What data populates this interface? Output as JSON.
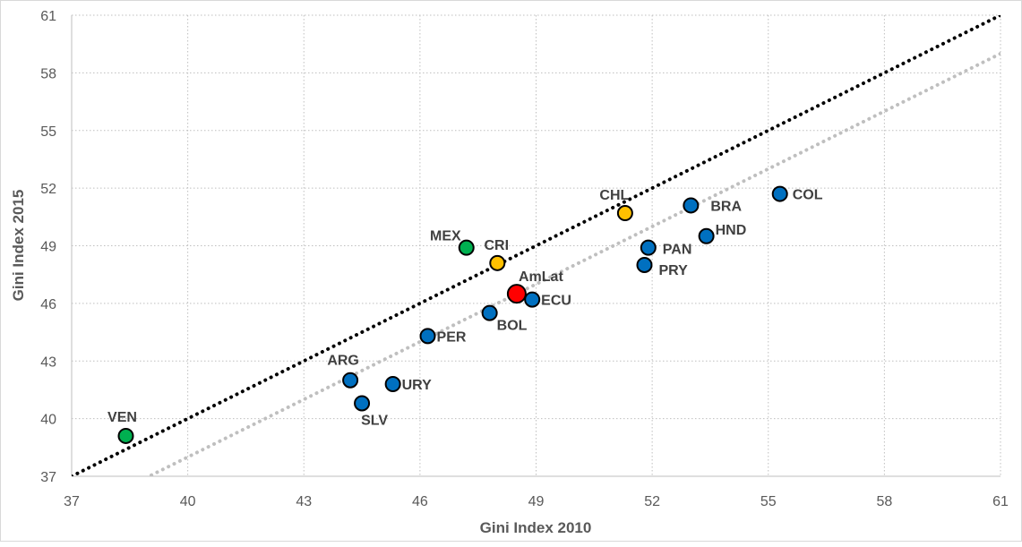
{
  "chart_data": {
    "type": "scatter",
    "title": "",
    "xlabel": "Gini Index 2010",
    "ylabel": "Gini Index 2015",
    "xlim": [
      37,
      61
    ],
    "ylim": [
      37,
      61
    ],
    "xticks": [
      "37",
      "40",
      "43",
      "46",
      "49",
      "52",
      "55",
      "58",
      "61"
    ],
    "yticks": [
      "37",
      "40",
      "43",
      "46",
      "49",
      "52",
      "55",
      "58",
      "61"
    ],
    "grid": true,
    "legend": "none",
    "colors": {
      "blue": "#0070c0",
      "green": "#00b050",
      "orange": "#ffc000",
      "red": "#ff0000",
      "diagonal": "#000000",
      "trend": "#bfbfbf"
    },
    "reference_lines": [
      {
        "style": "black-dotted",
        "x": [
          37,
          61
        ],
        "y": [
          37,
          61
        ]
      },
      {
        "style": "gray-dotted",
        "x": [
          37,
          61
        ],
        "y": [
          35,
          59
        ]
      }
    ],
    "points": [
      {
        "label": "VEN",
        "x": 38.4,
        "y": 39.1,
        "color": "green"
      },
      {
        "label": "ARG",
        "x": 44.2,
        "y": 42.0,
        "color": "blue"
      },
      {
        "label": "SLV",
        "x": 44.5,
        "y": 40.8,
        "color": "blue"
      },
      {
        "label": "URY",
        "x": 45.3,
        "y": 41.8,
        "color": "blue"
      },
      {
        "label": "PER",
        "x": 46.2,
        "y": 44.3,
        "color": "blue"
      },
      {
        "label": "MEX",
        "x": 47.2,
        "y": 48.9,
        "color": "green"
      },
      {
        "label": "BOL",
        "x": 47.8,
        "y": 45.5,
        "color": "blue"
      },
      {
        "label": "CRI",
        "x": 48.0,
        "y": 48.1,
        "color": "orange"
      },
      {
        "label": "AmLat",
        "x": 48.5,
        "y": 46.5,
        "color": "red"
      },
      {
        "label": "ECU",
        "x": 48.9,
        "y": 46.2,
        "color": "blue"
      },
      {
        "label": "CHL",
        "x": 51.3,
        "y": 50.7,
        "color": "orange"
      },
      {
        "label": "PRY",
        "x": 51.8,
        "y": 48.0,
        "color": "blue"
      },
      {
        "label": "PAN",
        "x": 51.9,
        "y": 48.9,
        "color": "blue"
      },
      {
        "label": "BRA",
        "x": 53.0,
        "y": 51.1,
        "color": "blue"
      },
      {
        "label": "HND",
        "x": 53.4,
        "y": 49.5,
        "color": "blue"
      },
      {
        "label": "COL",
        "x": 55.3,
        "y": 51.7,
        "color": "blue"
      }
    ]
  }
}
